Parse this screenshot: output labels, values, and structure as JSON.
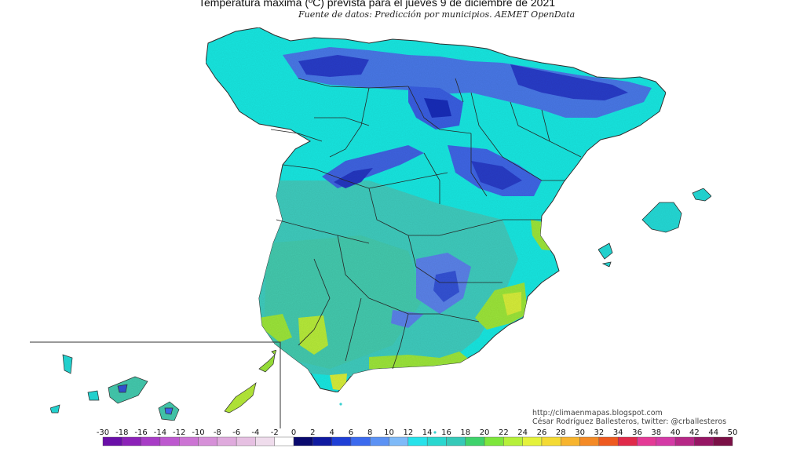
{
  "title": "Temperatura máxima (ºC) prevista para el jueves 9 de diciembre de 2021",
  "subtitle": "Fuente de datos: Predicción por municipios. AEMET OpenData",
  "credits": {
    "url": "http://climaenmapas.blogspot.com",
    "author": "César Rodríguez Ballesteros, twitter: @crballesteros"
  },
  "legend": {
    "labels": [
      "-30",
      "-18",
      "-16",
      "-14",
      "-12",
      "-10",
      "-8",
      "-6",
      "-4",
      "-2",
      "0",
      "2",
      "4",
      "6",
      "8",
      "10",
      "12",
      "14",
      "16",
      "18",
      "20",
      "22",
      "24",
      "26",
      "28",
      "30",
      "32",
      "34",
      "36",
      "38",
      "40",
      "42",
      "44",
      "50"
    ],
    "colors": [
      "#6a0fa8",
      "#8c22b8",
      "#a83cc6",
      "#bd58cf",
      "#cc74d4",
      "#d690d8",
      "#dfaadd",
      "#e6c0e2",
      "#efdcec",
      "#ffffff",
      "#0a0a6e",
      "#101aa0",
      "#1f3fd6",
      "#3c6aee",
      "#5c92f4",
      "#7fbaf8",
      "#28e2ea",
      "#2ad7cf",
      "#36c9b8",
      "#3fd26c",
      "#7ee63c",
      "#b6f03a",
      "#e4f23c",
      "#f4da34",
      "#f7b42e",
      "#f48a26",
      "#ee5a20",
      "#e02a4a",
      "#e43a96",
      "#d43aa6",
      "#b62886",
      "#961664",
      "#7a1046"
    ],
    "map_colors": {
      "sea": "#ffffff",
      "land_base": "#1ee6e0",
      "interior_mid": "#34cfc4",
      "south_lowlands": "#45c9ad",
      "mountains_cold": "#4a78e6",
      "mountains_colder": "#2c3cc8",
      "coast_warm": "#9be43a",
      "coast_warmer": "#d6ec3a",
      "borders": "#222222"
    }
  }
}
